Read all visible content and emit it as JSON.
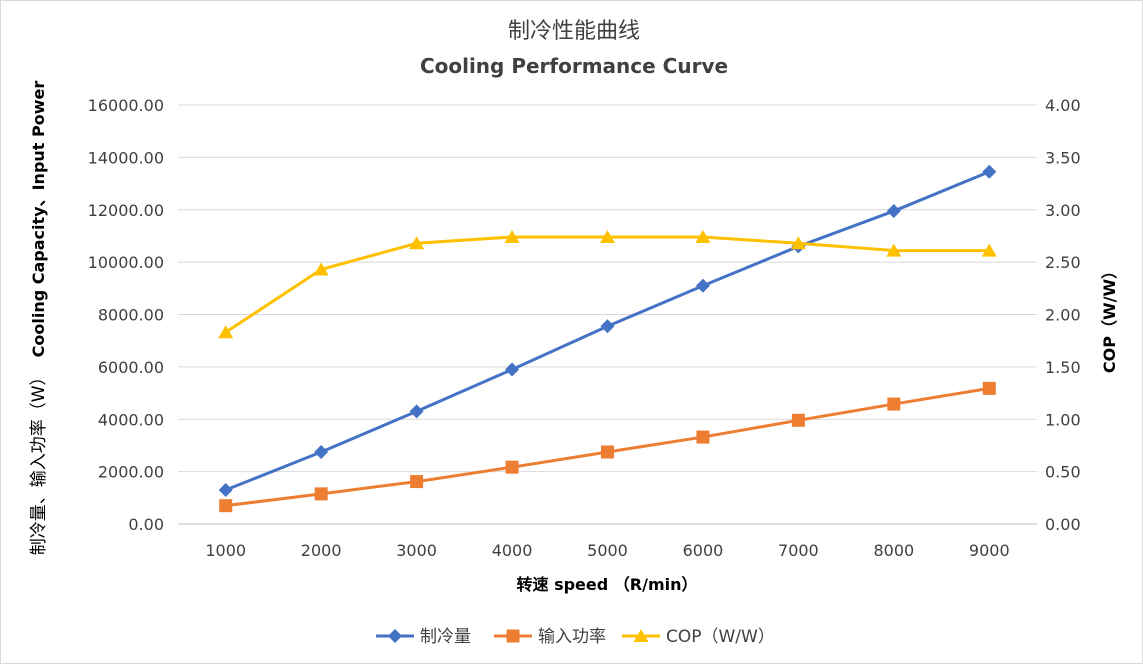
{
  "chart_data": {
    "type": "line",
    "title": "制冷性能曲线",
    "subtitle": "Cooling Performance Curve",
    "xlabel": "转速 speed （R/min）",
    "ylabel_left": "制冷量、输入功率（W）Cooling Capacity、Input Power",
    "ylabel_left_cn": "制冷量、输入功率（W）",
    "ylabel_left_en": "Cooling Capacity、Input Power",
    "ylabel_right": "COP（W/W）",
    "categories": [
      "1000",
      "2000",
      "3000",
      "4000",
      "5000",
      "6000",
      "7000",
      "8000",
      "9000"
    ],
    "ylim_left": [
      0,
      16000
    ],
    "ylim_right": [
      0,
      4
    ],
    "yticks_left": [
      "0.00",
      "2000.00",
      "4000.00",
      "6000.00",
      "8000.00",
      "10000.00",
      "12000.00",
      "14000.00",
      "16000.00"
    ],
    "yticks_right": [
      "0.00",
      "0.50",
      "1.00",
      "1.50",
      "2.00",
      "2.50",
      "3.00",
      "3.50",
      "4.00"
    ],
    "grid": true,
    "legend_position": "bottom",
    "series": [
      {
        "name": "制冷量",
        "axis": "left",
        "color": "#4472C4",
        "marker": "diamond",
        "values": [
          1300,
          2750,
          4300,
          5900,
          7550,
          9100,
          10600,
          11950,
          13450
        ]
      },
      {
        "name": "输入功率",
        "axis": "left",
        "color": "#ED7D31",
        "marker": "square",
        "values": [
          700,
          1150,
          1620,
          2170,
          2750,
          3320,
          3960,
          4580,
          5180
        ]
      },
      {
        "name": "COP（W/W）",
        "axis": "right",
        "color": "#FFC000",
        "marker": "triangle",
        "values": [
          1.83,
          2.43,
          2.68,
          2.74,
          2.74,
          2.74,
          2.68,
          2.61,
          2.61
        ]
      }
    ]
  }
}
